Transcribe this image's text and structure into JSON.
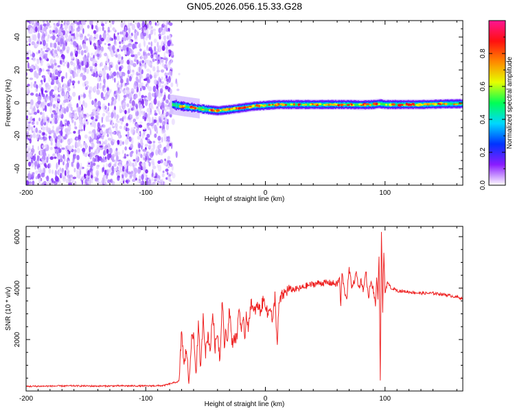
{
  "title": "GN05.2026.056.15.33.G28",
  "chart_data": [
    {
      "type": "heatmap",
      "name": "spectrogram",
      "xlabel": "Height of straight line (km)",
      "ylabel": "Frequency (Hz)",
      "xlim": [
        -200,
        165
      ],
      "ylim": [
        -50,
        50
      ],
      "xticks": [
        -200,
        -100,
        0,
        100
      ],
      "yticks": [
        -40,
        -20,
        0,
        20,
        40
      ],
      "noise_region_x": [
        -200,
        -78
      ],
      "carrier_profile": {
        "x": [
          -78,
          -70,
          -60,
          -50,
          -40,
          -30,
          -20,
          -10,
          0,
          10,
          20,
          30,
          40,
          50,
          60,
          70,
          80,
          90,
          95,
          100,
          110,
          120,
          130,
          140,
          150,
          165
        ],
        "freq": [
          -1.0,
          -2.0,
          -3.0,
          -4.0,
          -4.8,
          -4.0,
          -3.0,
          -2.0,
          -1.5,
          -1.0,
          -1.0,
          -1.0,
          -1.0,
          -1.0,
          -1.0,
          -1.0,
          -1.2,
          -1.0,
          -0.5,
          -1.0,
          -1.0,
          -1.0,
          -1.0,
          -0.8,
          -0.6,
          -0.5
        ]
      },
      "colorbar": {
        "label": "Normalized spectral amplitude",
        "range": [
          0,
          1
        ],
        "ticks": [
          "0.0",
          "0.2",
          "0.4",
          "0.6",
          "0.8"
        ],
        "tick_values": [
          0,
          0.2,
          0.4,
          0.6,
          0.8
        ],
        "colors": [
          "#ffffff",
          "#8a1cff",
          "#0033ff",
          "#00d8ff",
          "#00ff55",
          "#e6ff00",
          "#ff8800",
          "#ff1010",
          "#ff1493"
        ]
      }
    },
    {
      "type": "line",
      "name": "snr",
      "xlabel": "Height of straight line (km)",
      "ylabel": "SNR (10 * v/v)",
      "xlim": [
        -200,
        165
      ],
      "ylim": [
        0,
        6400
      ],
      "xticks": [
        -200,
        -100,
        0,
        100
      ],
      "yticks": [
        2000,
        4000,
        6000
      ],
      "color": "#ee2222",
      "series": [
        {
          "name": "SNR",
          "x": [
            -200,
            -180,
            -160,
            -140,
            -120,
            -100,
            -85,
            -72,
            -70,
            -68,
            -66,
            -64,
            -62,
            -60,
            -58,
            -56,
            -54,
            -52,
            -50,
            -48,
            -46,
            -44,
            -42,
            -40,
            -38,
            -36,
            -34,
            -33,
            -32,
            -30,
            -28,
            -26,
            -24,
            -22,
            -20,
            -18,
            -17,
            -16,
            -14,
            -12,
            -10,
            -8,
            -6,
            -4,
            -2,
            0,
            2,
            4,
            6,
            8,
            10,
            11,
            12,
            14,
            16,
            18,
            20,
            25,
            30,
            35,
            40,
            45,
            50,
            55,
            60,
            62,
            63,
            64,
            66,
            68,
            70,
            72,
            74,
            76,
            78,
            80,
            82,
            84,
            86,
            88,
            90,
            92,
            93,
            94,
            95,
            96,
            97,
            98,
            99,
            100,
            102,
            104,
            106,
            108,
            110,
            120,
            130,
            140,
            150,
            160,
            165
          ],
          "y": [
            180,
            190,
            200,
            190,
            200,
            195,
            210,
            380,
            2400,
            900,
            1700,
            300,
            1900,
            2200,
            700,
            2500,
            800,
            3000,
            1500,
            2200,
            1600,
            3100,
            1700,
            2300,
            1200,
            3700,
            1500,
            2500,
            1800,
            3300,
            1800,
            2100,
            2000,
            3300,
            2300,
            2700,
            2000,
            3100,
            2400,
            3600,
            3000,
            3200,
            3300,
            3100,
            3500,
            3450,
            2900,
            3400,
            2600,
            3700,
            1700,
            3100,
            3500,
            3700,
            3800,
            3900,
            3950,
            3950,
            4000,
            4100,
            4150,
            4200,
            4200,
            4200,
            4150,
            4400,
            3200,
            4600,
            3900,
            3600,
            4750,
            4100,
            4200,
            4600,
            4000,
            4300,
            3900,
            4700,
            3600,
            4200,
            4000,
            3300,
            4500,
            3500,
            5200,
            500,
            6200,
            3000,
            5500,
            3800,
            4200,
            4100,
            3900,
            4000,
            3900,
            3850,
            3800,
            3800,
            3750,
            3650,
            3600
          ]
        }
      ]
    }
  ]
}
